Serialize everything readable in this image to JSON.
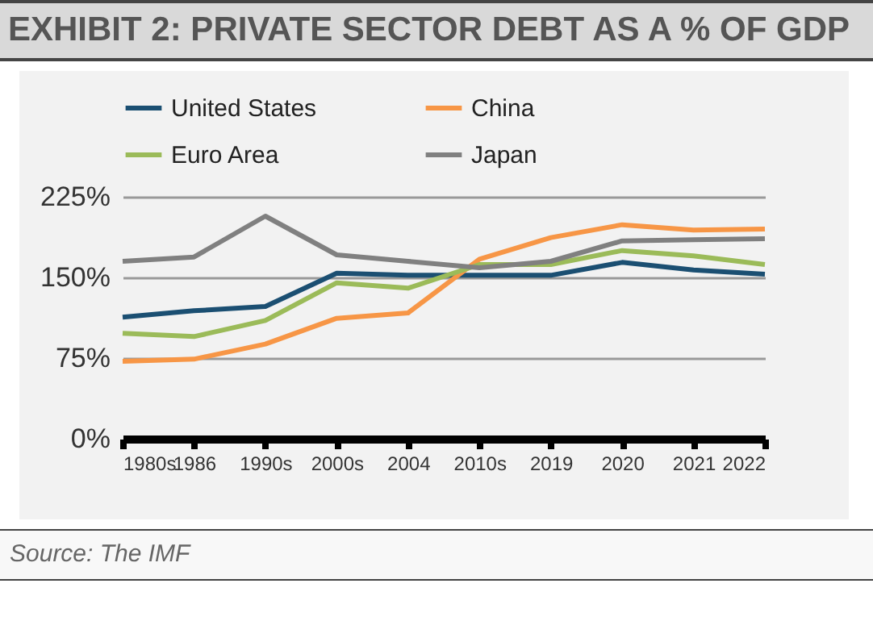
{
  "chart_data": {
    "type": "line",
    "title": "EXHIBIT 2: PRIVATE SECTOR DEBT AS A % OF GDP",
    "categories": [
      "1980s",
      "1986",
      "1990s",
      "2000s",
      "2004",
      "2010s",
      "2019",
      "2020",
      "2021",
      "2022"
    ],
    "series": [
      {
        "name": "United States",
        "color": "#1b4f72",
        "values": [
          113,
          119,
          123,
          154,
          152,
          152,
          152,
          164,
          157,
          153
        ]
      },
      {
        "name": "China",
        "color": "#f79646",
        "values": [
          72,
          74,
          88,
          112,
          117,
          167,
          187,
          199,
          194,
          195
        ]
      },
      {
        "name": "Euro Area",
        "color": "#9bbb59",
        "values": [
          98,
          95,
          110,
          145,
          140,
          162,
          162,
          175,
          170,
          162
        ]
      },
      {
        "name": "Japan",
        "color": "#808080",
        "values": [
          165,
          169,
          207,
          171,
          165,
          159,
          165,
          184,
          185,
          186
        ]
      }
    ],
    "ylim": [
      0,
      225
    ],
    "yticks": [
      {
        "value": 0,
        "label": "0%"
      },
      {
        "value": 75,
        "label": "75%"
      },
      {
        "value": 150,
        "label": "150%"
      },
      {
        "value": 225,
        "label": "225%"
      }
    ],
    "grid": "y",
    "legend": "top",
    "line_style": "solid",
    "marker": "none",
    "annotations": [
      "Source: The IMF"
    ]
  }
}
